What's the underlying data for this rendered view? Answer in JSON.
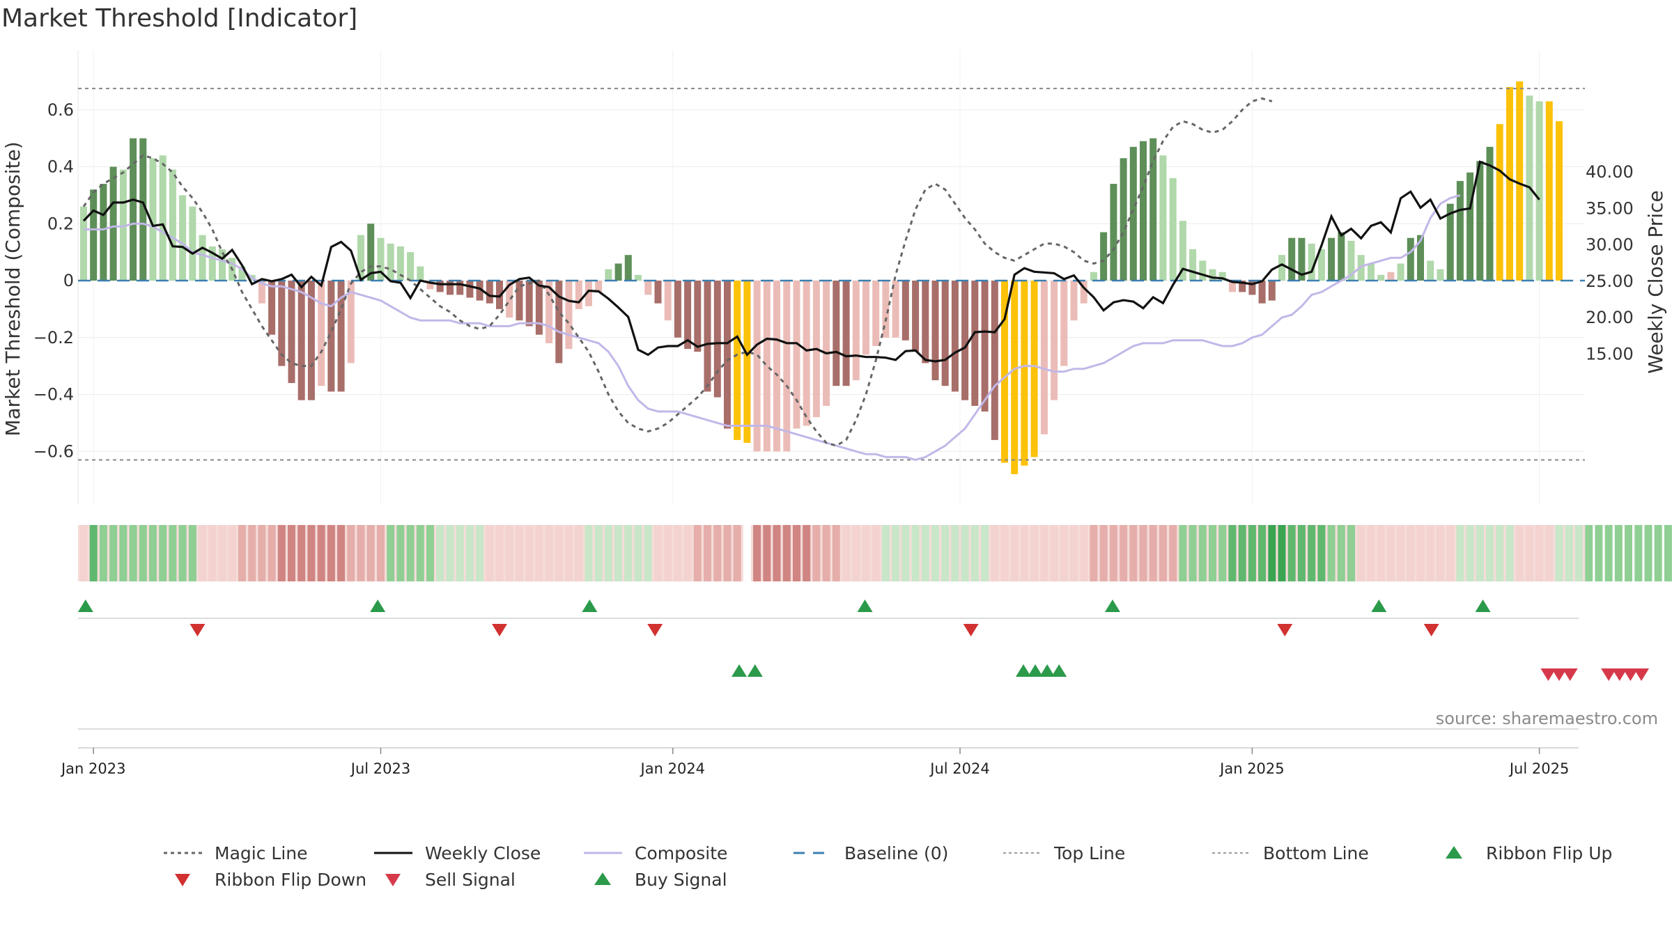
{
  "colors": {
    "bull_strong": "#5e8f59",
    "bull_light": "#b0d8aa",
    "bear_strong": "#a86e69",
    "bear_light": "#ebbcb7",
    "extreme": "#fcc20a",
    "close_line": "#111111",
    "composite_line": "#c2b7e8",
    "magic_line": "#666666",
    "baseline": "#3b7fb0",
    "buy": "#2b9a4a",
    "sell": "#d63a4a",
    "ribbon_green": "#4aa35c",
    "ribbon_red": "#c9706c"
  },
  "chart_data": {
    "type": "bar",
    "title": "Market Threshold [Indicator]",
    "ylabel_left": "Market Threshold (Composite)",
    "ylabel_right": "Weekly Close Price",
    "left_ticks": [
      "0.6",
      "0.4",
      "0.2",
      "0",
      "−0.2",
      "−0.4",
      "−0.6"
    ],
    "left_tick_values": [
      0.6,
      0.4,
      0.2,
      0,
      -0.2,
      -0.4,
      -0.6
    ],
    "right_ticks": [
      "40.00",
      "35.00",
      "30.00",
      "25.00",
      "20.00",
      "15.00"
    ],
    "right_tick_values": [
      40,
      35,
      30,
      25,
      20,
      15
    ],
    "left_ylim": [
      -0.78,
      0.78
    ],
    "right_ylim": [
      11.8,
      44.2
    ],
    "top_line": 0.675,
    "bottom_line": -0.63,
    "x_ticks": [
      "Jan 2023",
      "Jul 2023",
      "Jan 2024",
      "Jul 2024",
      "Jan 2025",
      "Jul 2025"
    ],
    "x_tick_weeks": [
      1,
      30,
      59.5,
      88.5,
      118,
      147
    ],
    "magic_line": [
      0.26,
      0.31,
      0.34,
      0.36,
      0.38,
      0.41,
      0.44,
      0.43,
      0.41,
      0.38,
      0.33,
      0.29,
      0.24,
      0.18,
      0.1,
      0.04,
      -0.04,
      -0.1,
      -0.16,
      -0.21,
      -0.26,
      -0.29,
      -0.3,
      -0.3,
      -0.25,
      -0.18,
      -0.1,
      -0.01,
      0.03,
      0.05,
      0.05,
      0.04,
      0.02,
      0,
      -0.03,
      -0.06,
      -0.09,
      -0.11,
      -0.14,
      -0.16,
      -0.17,
      -0.16,
      -0.12,
      -0.07,
      -0.02,
      -0.01,
      0,
      -0.05,
      -0.11,
      -0.15,
      -0.2,
      -0.25,
      -0.32,
      -0.4,
      -0.46,
      -0.5,
      -0.52,
      -0.53,
      -0.52,
      -0.5,
      -0.47,
      -0.44,
      -0.41,
      -0.37,
      -0.32,
      -0.28,
      -0.26,
      -0.25,
      -0.26,
      -0.3,
      -0.33,
      -0.37,
      -0.42,
      -0.48,
      -0.53,
      -0.57,
      -0.58,
      -0.56,
      -0.49,
      -0.4,
      -0.28,
      -0.14,
      0.02,
      0.14,
      0.25,
      0.32,
      0.34,
      0.32,
      0.27,
      0.22,
      0.18,
      0.13,
      0.1,
      0.08,
      0.07,
      0.09,
      0.11,
      0.13,
      0.13,
      0.12,
      0.1,
      0.07,
      0.06,
      0.07,
      0.11,
      0.17,
      0.25,
      0.33,
      0.42,
      0.49,
      0.54,
      0.56,
      0.55,
      0.53,
      0.52,
      0.53,
      0.56,
      0.6,
      0.63,
      0.64,
      0.63
    ],
    "weekly_close": [
      33.3,
      34.7,
      34.1,
      35.8,
      35.8,
      36.2,
      35.8,
      32.6,
      32.8,
      29.8,
      29.7,
      28.8,
      29.6,
      28.9,
      28.1,
      29.3,
      27.2,
      24.6,
      25.3,
      25.0,
      25.3,
      25.9,
      24.2,
      25.6,
      24.4,
      29.7,
      30.4,
      29.2,
      25.2,
      26.1,
      26.3,
      25.0,
      24.8,
      22.7,
      25.1,
      24.8,
      24.6,
      24.6,
      24.6,
      24.3,
      24.0,
      23.0,
      22.9,
      24.5,
      25.3,
      25.5,
      24.4,
      24.2,
      22.9,
      22.3,
      22.1,
      23.7,
      23.6,
      22.6,
      21.4,
      20.1,
      15.6,
      14.9,
      15.9,
      16.1,
      16.1,
      16.9,
      16.0,
      16.4,
      16.5,
      16.5,
      17.4,
      14.9,
      16.3,
      17.1,
      17.0,
      16.5,
      16.5,
      15.5,
      15.7,
      15.1,
      15.3,
      14.7,
      14.8,
      14.6,
      14.6,
      14.5,
      14.2,
      15.4,
      15.5,
      14.2,
      14.0,
      14.2,
      15.2,
      15.9,
      18.0,
      18.1,
      18.0,
      19.8,
      25.9,
      26.8,
      26.3,
      26.2,
      26.1,
      25.3,
      25.8,
      24.1,
      22.8,
      21.0,
      22.1,
      22.4,
      22.2,
      21.3,
      22.8,
      22.0,
      24.5,
      26.7,
      26.3,
      25.9,
      25.5,
      25.4,
      24.9,
      24.8,
      24.6,
      25.0,
      26.6,
      27.3,
      26.6,
      25.9,
      26.3,
      29.9,
      33.9,
      31.3,
      32.2,
      30.9,
      32.6,
      33.1,
      31.7,
      36.4,
      37.3,
      35.1,
      36.2,
      33.6,
      34.3,
      34.8,
      35.0,
      41.4,
      40.9,
      40.2,
      39.0,
      38.4,
      37.9,
      36.2
    ],
    "composite": [
      0.18,
      0.18,
      0.18,
      0.19,
      0.19,
      0.2,
      0.2,
      0.19,
      0.17,
      0.15,
      0.13,
      0.1,
      0.09,
      0.08,
      0.07,
      0.06,
      0.04,
      0.01,
      -0.01,
      -0.02,
      -0.02,
      -0.03,
      -0.04,
      -0.06,
      -0.08,
      -0.09,
      -0.06,
      -0.04,
      -0.05,
      -0.06,
      -0.07,
      -0.09,
      -0.11,
      -0.13,
      -0.14,
      -0.14,
      -0.14,
      -0.14,
      -0.15,
      -0.15,
      -0.15,
      -0.16,
      -0.16,
      -0.16,
      -0.15,
      -0.15,
      -0.15,
      -0.16,
      -0.18,
      -0.19,
      -0.2,
      -0.21,
      -0.22,
      -0.25,
      -0.3,
      -0.37,
      -0.42,
      -0.45,
      -0.46,
      -0.46,
      -0.46,
      -0.47,
      -0.48,
      -0.49,
      -0.5,
      -0.51,
      -0.51,
      -0.51,
      -0.51,
      -0.51,
      -0.52,
      -0.53,
      -0.54,
      -0.55,
      -0.56,
      -0.57,
      -0.58,
      -0.59,
      -0.6,
      -0.61,
      -0.61,
      -0.62,
      -0.62,
      -0.62,
      -0.63,
      -0.62,
      -0.6,
      -0.58,
      -0.55,
      -0.52,
      -0.47,
      -0.42,
      -0.37,
      -0.34,
      -0.31,
      -0.3,
      -0.3,
      -0.31,
      -0.32,
      -0.32,
      -0.31,
      -0.31,
      -0.3,
      -0.29,
      -0.27,
      -0.25,
      -0.23,
      -0.22,
      -0.22,
      -0.22,
      -0.21,
      -0.21,
      -0.21,
      -0.21,
      -0.22,
      -0.23,
      -0.23,
      -0.22,
      -0.2,
      -0.19,
      -0.16,
      -0.13,
      -0.12,
      -0.09,
      -0.05,
      -0.04,
      -0.02,
      0,
      0.02,
      0.05,
      0.06,
      0.07,
      0.08,
      0.08,
      0.1,
      0.14,
      0.22,
      0.27,
      0.29,
      0.3
    ],
    "bars": [
      0.26,
      0.32,
      0.34,
      0.4,
      0.39,
      0.5,
      0.5,
      0.43,
      0.44,
      0.39,
      0.3,
      0.26,
      0.16,
      0.12,
      0.11,
      0.08,
      0.05,
      0.02,
      -0.08,
      -0.19,
      -0.3,
      -0.36,
      -0.42,
      -0.42,
      -0.37,
      -0.39,
      -0.39,
      -0.29,
      0.16,
      0.2,
      0.15,
      0.13,
      0.12,
      0.1,
      0.05,
      -0.03,
      -0.04,
      -0.05,
      -0.05,
      -0.06,
      -0.07,
      -0.08,
      -0.1,
      -0.13,
      -0.14,
      -0.16,
      -0.19,
      -0.22,
      -0.29,
      -0.24,
      -0.1,
      -0.09,
      -0.04,
      0.04,
      0.06,
      0.09,
      0.02,
      -0.05,
      -0.08,
      -0.14,
      -0.2,
      -0.24,
      -0.25,
      -0.39,
      -0.41,
      -0.52,
      -0.56,
      -0.57,
      -0.6,
      -0.6,
      -0.6,
      -0.6,
      -0.52,
      -0.51,
      -0.48,
      -0.44,
      -0.37,
      -0.37,
      -0.35,
      -0.26,
      -0.23,
      -0.2,
      -0.2,
      -0.21,
      -0.25,
      -0.29,
      -0.35,
      -0.37,
      -0.39,
      -0.42,
      -0.44,
      -0.46,
      -0.56,
      -0.64,
      -0.68,
      -0.65,
      -0.62,
      -0.54,
      -0.42,
      -0.3,
      -0.14,
      -0.08,
      0.03,
      0.17,
      0.34,
      0.43,
      0.47,
      0.49,
      0.5,
      0.44,
      0.36,
      0.21,
      0.11,
      0.07,
      0.04,
      0.03,
      -0.04,
      -0.04,
      -0.05,
      -0.08,
      -0.07,
      0.09,
      0.15,
      0.15,
      0.13,
      0.11,
      0.15,
      0.17,
      0.14,
      0.09,
      0.06,
      0.02,
      0.03,
      0.06,
      0.15,
      0.16,
      0.07,
      0.04,
      0.27,
      0.35,
      0.38,
      0.42,
      0.47,
      0.55,
      0.68,
      0.7,
      0.65,
      0.63,
      0.63,
      0.56
    ],
    "bar_colors": [
      "bull_light",
      "bull_strong",
      "bull_strong",
      "bull_strong",
      "bull_light",
      "bull_strong",
      "bull_strong",
      "bull_light",
      "bull_light",
      "bull_light",
      "bull_light",
      "bull_light",
      "bull_light",
      "bull_light",
      "bull_light",
      "bull_light",
      "bull_light",
      "bull_light",
      "bear_light",
      "bear_strong",
      "bear_strong",
      "bear_strong",
      "bear_strong",
      "bear_strong",
      "bear_light",
      "bear_strong",
      "bear_strong",
      "bear_light",
      "bull_light",
      "bull_strong",
      "bull_light",
      "bull_light",
      "bull_light",
      "bull_light",
      "bull_light",
      "bear_light",
      "bear_strong",
      "bear_strong",
      "bear_strong",
      "bear_strong",
      "bear_strong",
      "bear_strong",
      "bear_strong",
      "bear_light",
      "bear_strong",
      "bear_strong",
      "bear_strong",
      "bear_light",
      "bear_strong",
      "bear_light",
      "bear_light",
      "bear_light",
      "bear_light",
      "bull_light",
      "bull_strong",
      "bull_strong",
      "bull_light",
      "bear_light",
      "bear_strong",
      "bear_light",
      "bear_strong",
      "bear_strong",
      "bear_strong",
      "bear_strong",
      "bear_strong",
      "bear_strong",
      "extreme",
      "extreme",
      "bear_light",
      "bear_light",
      "bear_light",
      "bear_light",
      "bear_light",
      "bear_light",
      "bear_light",
      "bear_light",
      "bear_strong",
      "bear_strong",
      "bear_light",
      "bear_light",
      "bear_light",
      "bear_light",
      "bear_light",
      "bear_strong",
      "bear_strong",
      "bear_strong",
      "bear_strong",
      "bear_strong",
      "bear_strong",
      "bear_strong",
      "bear_strong",
      "bear_strong",
      "bear_strong",
      "extreme",
      "extreme",
      "extreme",
      "extreme",
      "bear_light",
      "bear_light",
      "bear_light",
      "bear_light",
      "bear_light",
      "bull_light",
      "bull_strong",
      "bull_strong",
      "bull_strong",
      "bull_strong",
      "bull_strong",
      "bull_strong",
      "bull_light",
      "bull_light",
      "bull_light",
      "bull_light",
      "bull_light",
      "bull_light",
      "bull_light",
      "bear_light",
      "bear_strong",
      "bear_strong",
      "bear_strong",
      "bear_strong",
      "bull_light",
      "bull_strong",
      "bull_strong",
      "bull_light",
      "bull_light",
      "bull_strong",
      "bull_strong",
      "bull_light",
      "bull_light",
      "bull_light",
      "bull_light",
      "bear_light",
      "bull_light",
      "bull_strong",
      "bull_strong",
      "bull_light",
      "bull_light",
      "bull_strong",
      "bull_strong",
      "bull_strong",
      "bull_strong",
      "bull_strong",
      "extreme",
      "extreme",
      "extreme",
      "bull_light",
      "bull_light",
      "extreme",
      "extreme",
      "extreme",
      "extreme",
      "bull_light"
    ],
    "ribbon": [
      -1,
      3,
      2,
      2,
      2,
      2,
      2,
      2,
      2,
      2,
      2,
      2,
      -1,
      -1,
      -1,
      -1,
      -2,
      -2,
      -2,
      -2,
      -3,
      -3,
      -3,
      -3,
      -3,
      -3,
      -3,
      -2,
      -2,
      -2,
      -2,
      2,
      2,
      2,
      2,
      2,
      1,
      1,
      1,
      1,
      1,
      -1,
      -1,
      -1,
      -1,
      -1,
      -1,
      -1,
      -1,
      -1,
      -1,
      1,
      1,
      1,
      1,
      1,
      1,
      1,
      -1,
      -1,
      -1,
      -1,
      -2,
      -2,
      -2,
      -2,
      -2,
      0,
      -3,
      -3,
      -3,
      -3,
      -3,
      -3,
      -2,
      -2,
      -2,
      -1,
      -1,
      -1,
      -1,
      1,
      1,
      1,
      1,
      1,
      1,
      1,
      1,
      1,
      1,
      1,
      -1,
      -1,
      -1,
      -1,
      -1,
      -1,
      -1,
      -1,
      -1,
      -1,
      -2,
      -2,
      -2,
      -2,
      -2,
      -2,
      -2,
      -2,
      -2,
      2,
      2,
      2,
      2,
      2,
      3,
      3,
      3,
      3,
      4,
      4,
      3,
      3,
      3,
      3,
      2,
      2,
      2,
      -1,
      -1,
      -1,
      -1,
      -1,
      -1,
      -1,
      -1,
      -1,
      -1,
      1,
      1,
      1,
      1,
      1,
      1,
      -1,
      -1,
      -1,
      -1,
      1,
      1,
      1,
      2,
      2,
      2,
      2,
      2,
      2,
      2,
      2,
      2,
      2,
      2,
      2,
      2,
      2,
      2,
      2,
      2,
      2
    ],
    "ribbon_flip_up": [
      0.2,
      29.7,
      51.1,
      78.9,
      103.9,
      130.8,
      141.3
    ],
    "ribbon_flip_down": [
      11.5,
      42.0,
      57.7,
      89.6,
      121.3,
      136.1
    ],
    "buy_signal": [
      66.2,
      67.8,
      94.9,
      96.1,
      97.3,
      98.5
    ],
    "sell_signal": [
      147.9,
      149.0,
      150.1,
      154.0,
      155.1,
      156.2,
      157.3
    ]
  },
  "source_text": "source: sharemaestro.com",
  "legend": [
    {
      "label": "Magic Line",
      "icon": "dotted-line-icon"
    },
    {
      "label": "Weekly Close",
      "icon": "solid-line-icon"
    },
    {
      "label": "Composite",
      "icon": "solid-line-icon"
    },
    {
      "label": "Baseline (0)",
      "icon": "dashed-line-icon"
    },
    {
      "label": "Top Line",
      "icon": "dotted-line-icon"
    },
    {
      "label": "Bottom Line",
      "icon": "dotted-line-icon"
    },
    {
      "label": "Ribbon Flip Up",
      "icon": "triangle-up-icon"
    },
    {
      "label": "Ribbon Flip Down",
      "icon": "triangle-down-icon"
    },
    {
      "label": "Sell Signal",
      "icon": "triangle-down-icon"
    },
    {
      "label": "Buy Signal",
      "icon": "triangle-up-icon"
    }
  ]
}
